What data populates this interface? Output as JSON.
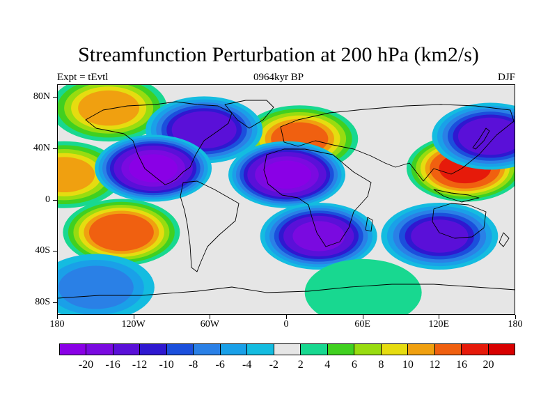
{
  "figure": {
    "title": "Streamfunction Perturbation at 200 hPa (km2/s)",
    "left_label": "Expt = tEvtl",
    "center_label": "0964kyr BP",
    "right_label": "DJF"
  },
  "map": {
    "type": "filled-contour",
    "projection": "cylindrical equidistant",
    "lon_range": [
      -180,
      180
    ],
    "lat_range": [
      -90,
      90
    ],
    "background_color": "#e6e6e6",
    "y_ticks": [
      {
        "value": 80,
        "label": "80N"
      },
      {
        "value": 40,
        "label": "40N"
      },
      {
        "value": 0,
        "label": "0"
      },
      {
        "value": -40,
        "label": "40S"
      },
      {
        "value": -80,
        "label": "80S"
      }
    ],
    "x_ticks": [
      {
        "value": -180,
        "label": "180"
      },
      {
        "value": -120,
        "label": "120W"
      },
      {
        "value": -60,
        "label": "60W"
      },
      {
        "value": 0,
        "label": "0"
      },
      {
        "value": 60,
        "label": "60E"
      },
      {
        "value": 120,
        "label": "120E"
      },
      {
        "value": 180,
        "label": "180"
      }
    ],
    "features": [
      {
        "name": "dipole-high-europe",
        "lon": 10,
        "lat": 48,
        "peak": 12
      },
      {
        "name": "dipole-high-east-asia",
        "lon": 140,
        "lat": 25,
        "peak": 16
      },
      {
        "name": "high-east-pacific",
        "lon": -175,
        "lat": 20,
        "peak": 10
      },
      {
        "name": "high-south-pacific",
        "lon": -130,
        "lat": -25,
        "peak": 14
      },
      {
        "name": "high-north-atlantic",
        "lon": -140,
        "lat": 72,
        "peak": 10
      },
      {
        "name": "low-north-america",
        "lon": -65,
        "lat": 55,
        "peak": -14
      },
      {
        "name": "low-central-america",
        "lon": -105,
        "lat": 25,
        "peak": -20
      },
      {
        "name": "low-atlantic",
        "lon": 0,
        "lat": 20,
        "peak": -20
      },
      {
        "name": "low-south-africa",
        "lon": 25,
        "lat": -28,
        "peak": -16
      },
      {
        "name": "low-australia",
        "lon": 120,
        "lat": -28,
        "peak": -12
      },
      {
        "name": "low-north-pacific",
        "lon": 160,
        "lat": 50,
        "peak": -14
      },
      {
        "name": "low-south-pacific-polar",
        "lon": -150,
        "lat": -68,
        "peak": -6
      },
      {
        "name": "high-southern-ocean",
        "lon": 60,
        "lat": -72,
        "peak": 3
      }
    ]
  },
  "colorbar": {
    "labels": [
      "-20",
      "-16",
      "-12",
      "-10",
      "-8",
      "-6",
      "-4",
      "-2",
      "2",
      "4",
      "6",
      "8",
      "10",
      "12",
      "16",
      "20"
    ],
    "colors": [
      "#8a00e6",
      "#7a0ae0",
      "#5a10d8",
      "#2f18d0",
      "#1b4fdc",
      "#2a80e6",
      "#1aa0e8",
      "#14bce0",
      "#e6e6e6",
      "#18d890",
      "#40d020",
      "#98dc10",
      "#e6dc10",
      "#f0a010",
      "#f06010",
      "#e61a0a",
      "#d80000"
    ]
  }
}
